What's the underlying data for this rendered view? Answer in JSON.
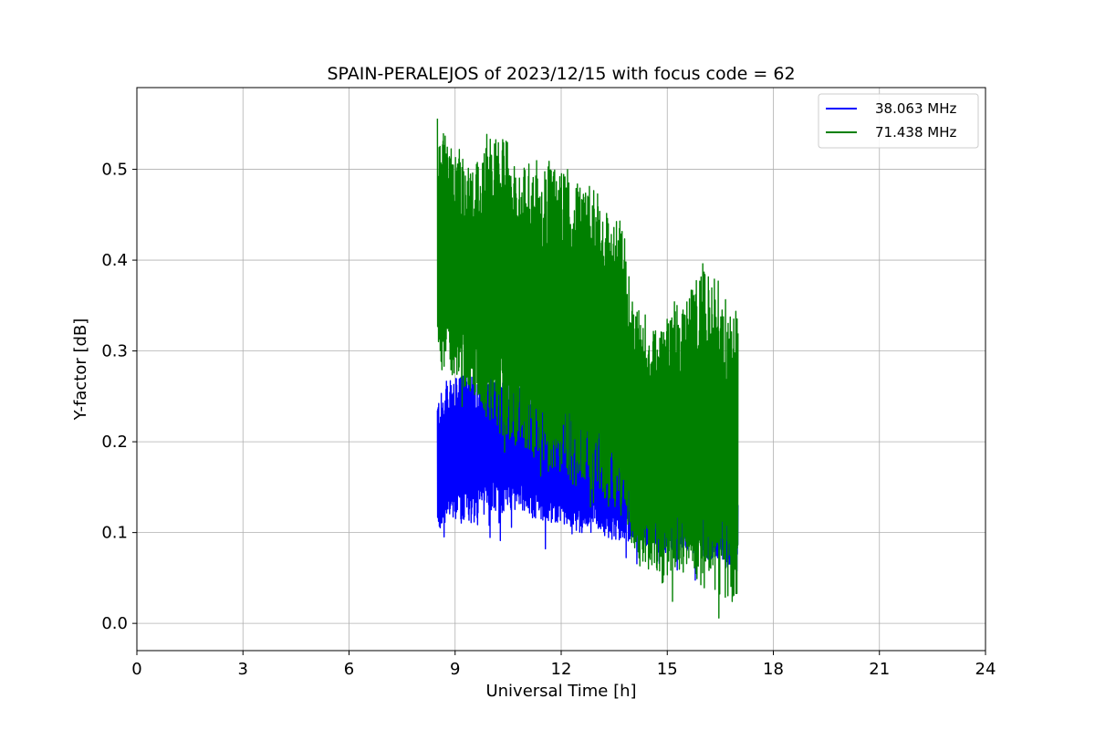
{
  "chart_data": {
    "type": "line",
    "title": "SPAIN-PERALEJOS of 2023/12/15 with focus code = 62",
    "xlabel": "Universal Time [h]",
    "ylabel": "Y-factor [dB]",
    "xlim": [
      0,
      24
    ],
    "ylim": [
      -0.03,
      0.59
    ],
    "xticks": [
      0,
      3,
      6,
      9,
      12,
      15,
      18,
      21,
      24
    ],
    "xtick_labels": [
      "0",
      "3",
      "6",
      "9",
      "12",
      "15",
      "18",
      "21",
      "24"
    ],
    "yticks": [
      0.0,
      0.1,
      0.2,
      0.3,
      0.4,
      0.5
    ],
    "ytick_labels": [
      "0.0",
      "0.1",
      "0.2",
      "0.3",
      "0.4",
      "0.5"
    ],
    "grid": true,
    "legend_position": "top-right",
    "series": [
      {
        "name": "38.063 MHz",
        "color": "#0000ff",
        "x": [
          8.5,
          9.0,
          9.5,
          10.0,
          10.5,
          11.0,
          11.5,
          12.0,
          12.5,
          13.0,
          13.5,
          14.0,
          14.5,
          15.0,
          15.5,
          16.0,
          16.5,
          17.0
        ],
        "upper": [
          0.25,
          0.27,
          0.28,
          0.27,
          0.28,
          0.27,
          0.26,
          0.25,
          0.24,
          0.24,
          0.22,
          0.21,
          0.2,
          0.19,
          0.17,
          0.17,
          0.16,
          0.15
        ],
        "lower": [
          0.1,
          0.11,
          0.11,
          0.12,
          0.12,
          0.12,
          0.11,
          0.11,
          0.1,
          0.1,
          0.09,
          0.09,
          0.08,
          0.08,
          0.08,
          0.07,
          0.07,
          0.06
        ],
        "min": 0.04
      },
      {
        "name": "71.438 MHz",
        "color": "#008000",
        "x": [
          8.5,
          9.0,
          9.5,
          10.0,
          10.5,
          11.0,
          11.5,
          12.0,
          12.5,
          13.0,
          13.5,
          13.8,
          14.0,
          14.5,
          15.0,
          15.5,
          16.0,
          16.5,
          17.0
        ],
        "upper": [
          0.55,
          0.52,
          0.5,
          0.54,
          0.53,
          0.5,
          0.5,
          0.5,
          0.48,
          0.47,
          0.44,
          0.43,
          0.36,
          0.32,
          0.34,
          0.36,
          0.39,
          0.37,
          0.33
        ],
        "lower": [
          0.28,
          0.27,
          0.25,
          0.22,
          0.2,
          0.19,
          0.17,
          0.16,
          0.15,
          0.14,
          0.12,
          0.11,
          0.08,
          0.06,
          0.05,
          0.05,
          0.04,
          0.03,
          0.02
        ],
        "min": 0.0
      }
    ]
  }
}
